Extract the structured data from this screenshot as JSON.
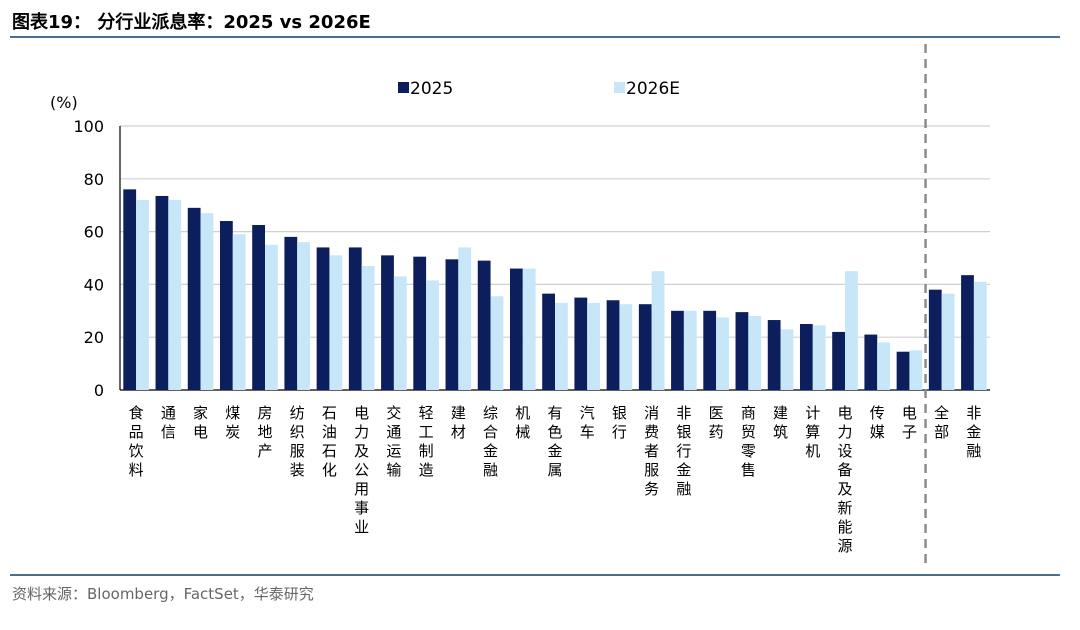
{
  "header": {
    "title": "图表19： 分行业派息率：2025 vs 2026E"
  },
  "footer": {
    "source": "资料来源：Bloomberg，FactSet，华泰研究"
  },
  "colors": {
    "series_2025": "#0d1e5c",
    "series_2026": "#c7e6f7",
    "grid": "#d0d0d0",
    "divider": "#8c8c8c",
    "rule": "#4a6f8f"
  },
  "chart_data": {
    "type": "bar",
    "ylabel": "(%)",
    "ylim": [
      0,
      100
    ],
    "yticks": [
      0,
      20,
      40,
      60,
      80,
      100
    ],
    "grid": true,
    "legend_position": "top-center",
    "categories": [
      "食品饮料",
      "通信",
      "家电",
      "煤炭",
      "房地产",
      "纺织服装",
      "石油石化",
      "电力及公用事业",
      "交通运输",
      "轻工制造",
      "建材",
      "综合金融",
      "机械",
      "有色金属",
      "汽车",
      "银行",
      "消费者服务",
      "非银行金融",
      "医药",
      "商贸零售",
      "建筑",
      "计算机",
      "电力设备及新能源",
      "传媒",
      "电子",
      "全部",
      "非金融"
    ],
    "series": [
      {
        "name": "2025",
        "values": [
          76,
          73.5,
          69,
          64,
          62.5,
          58,
          54,
          54,
          51,
          50.5,
          49.5,
          49,
          46,
          36.5,
          35,
          34,
          32.5,
          30,
          30,
          29.5,
          26.5,
          25,
          22,
          21,
          14.5,
          38,
          43.5
        ]
      },
      {
        "name": "2026E",
        "values": [
          72,
          72,
          67,
          59,
          55,
          56,
          51,
          47,
          43,
          41.5,
          54,
          35.5,
          46,
          33,
          33,
          32.5,
          45,
          30,
          27.5,
          28,
          23,
          24.5,
          45,
          18,
          15,
          36.5,
          41
        ]
      }
    ],
    "divider_after_category": "电子"
  }
}
